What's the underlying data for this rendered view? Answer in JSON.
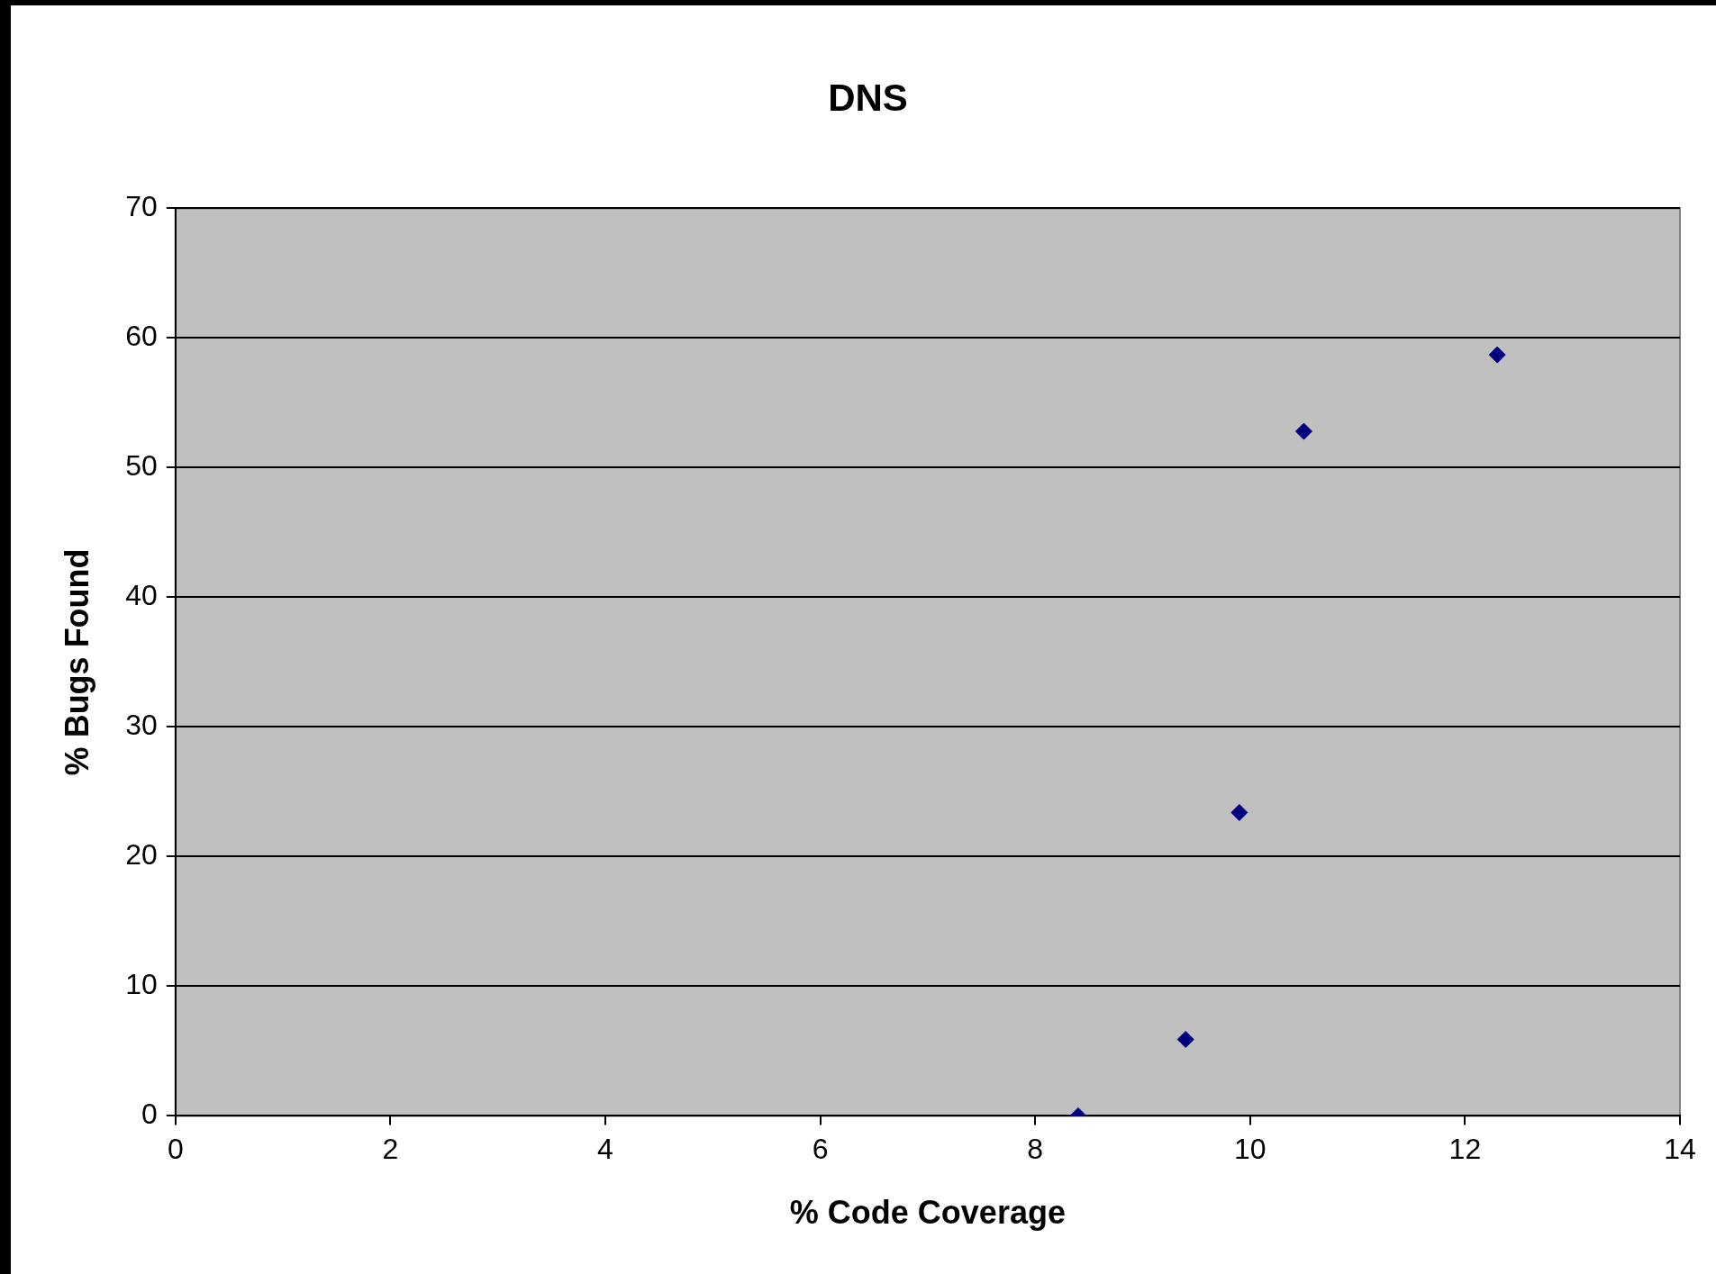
{
  "chart_data": {
    "type": "scatter",
    "title": "DNS",
    "xlabel": "% Code Coverage",
    "ylabel": "% Bugs Found",
    "x": [
      8.4,
      9.4,
      9.9,
      10.5,
      12.3
    ],
    "series": [
      {
        "color": "#000080",
        "values": [
          0,
          5.9,
          23.4,
          52.8,
          58.7
        ]
      }
    ],
    "xlim": [
      0,
      14
    ],
    "xticks": [
      0,
      2,
      4,
      6,
      8,
      10,
      12,
      14
    ],
    "ylim": [
      0,
      70
    ],
    "yticks": [
      0,
      10,
      20,
      30,
      40,
      50,
      60,
      70
    ],
    "grid": "y",
    "legend": false,
    "marker": "diamond"
  }
}
